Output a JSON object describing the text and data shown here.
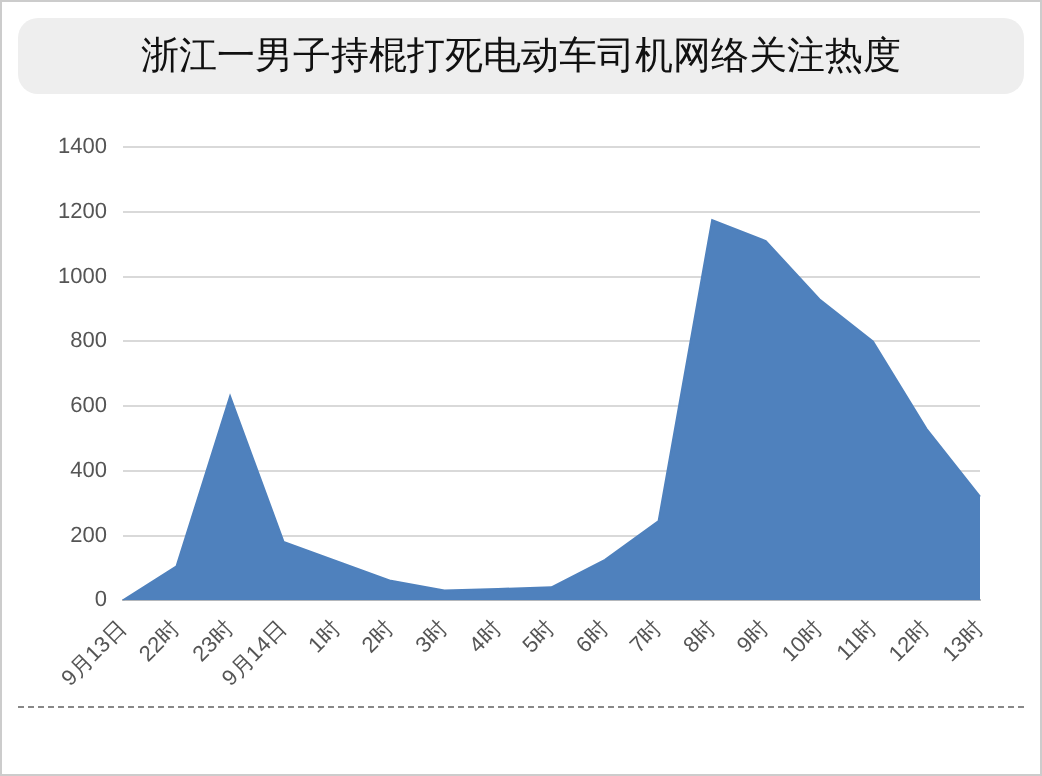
{
  "chart_data": {
    "type": "area",
    "title": "浙江一男子持棍打死电动车司机网络关注热度",
    "categories": [
      "9月13日",
      "22时",
      "23时",
      "9月14日",
      "1时",
      "2时",
      "3时",
      "4时",
      "5时",
      "6时",
      "7时",
      "8时",
      "9时",
      "10时",
      "11时",
      "12时",
      "13时"
    ],
    "values": [
      0,
      105,
      630,
      180,
      120,
      60,
      30,
      35,
      40,
      125,
      245,
      1175,
      1110,
      930,
      800,
      530,
      320
    ],
    "color": "#4f81bd",
    "ylim": [
      0,
      1400
    ],
    "yticks": [
      0,
      200,
      400,
      600,
      800,
      1000,
      1200,
      1400
    ],
    "grid": "y",
    "legend": false
  }
}
